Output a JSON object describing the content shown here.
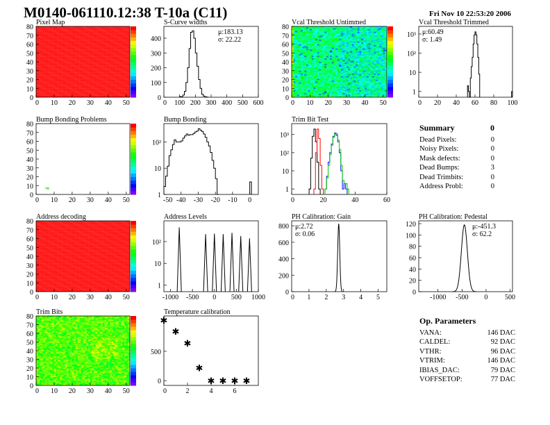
{
  "header": {
    "title": "M0140-061110.12:38 T-10a (C11)",
    "date": "Fri Nov 10 22:53:20 2006"
  },
  "colors": {
    "histogram": "#000000",
    "trim_black": "#000000",
    "trim_red": "#ff0000",
    "trim_blue": "#0000ff",
    "trim_green": "#00cc00"
  },
  "chart_data": [
    {
      "id": "pixel_map",
      "type": "heatmap",
      "title": "Pixel Map",
      "xticks": [
        0,
        10,
        20,
        30,
        40,
        50
      ],
      "yticks": [
        0,
        10,
        20,
        30,
        40,
        50,
        60,
        70,
        80
      ],
      "xlim": [
        0,
        52
      ],
      "ylim": [
        0,
        80
      ],
      "fill": "uniform-max",
      "palette": "rainbow"
    },
    {
      "id": "scurve",
      "type": "bar",
      "title": "S-Curve widths",
      "xlim": [
        0,
        600
      ],
      "ylim": [
        0,
        480
      ],
      "xticks": [
        0,
        100,
        200,
        300,
        400,
        500,
        600
      ],
      "yticks": [
        0,
        100,
        200,
        300,
        400
      ],
      "stats": [
        "μ:183.13",
        "σ: 22.22"
      ],
      "bins": {
        "width": 10,
        "x": [
          100,
          110,
          120,
          130,
          140,
          150,
          160,
          170,
          180,
          190,
          200,
          210,
          220,
          230,
          240,
          250,
          260,
          270
        ],
        "values": [
          5,
          3,
          15,
          40,
          100,
          200,
          330,
          440,
          450,
          400,
          300,
          210,
          120,
          60,
          20,
          8,
          3,
          1
        ]
      }
    },
    {
      "id": "vcal_untrimmed",
      "type": "heatmap",
      "title": "Vcal Threshold Untimmed",
      "xticks": [
        0,
        10,
        20,
        30,
        40,
        50
      ],
      "yticks": [
        0,
        10,
        20,
        30,
        40,
        50,
        60,
        70,
        80
      ],
      "xlim": [
        0,
        52
      ],
      "ylim": [
        0,
        80
      ],
      "fill": "noisy-mid",
      "palette": "rainbow"
    },
    {
      "id": "vcal_trimmed",
      "type": "bar",
      "title": "Vcal Threshold Trimmed",
      "log_y": true,
      "xlim": [
        0,
        100
      ],
      "ylim": [
        0.5,
        2500
      ],
      "xticks": [
        0,
        20,
        40,
        60,
        80,
        100
      ],
      "yticks": [
        1,
        10,
        100,
        1000
      ],
      "stats": [
        "μ:60.49",
        "σ: 1.49"
      ],
      "bins": {
        "width": 1,
        "x": [
          52,
          53,
          54,
          55,
          56,
          57,
          58,
          59,
          60,
          61,
          62,
          63,
          64,
          99
        ],
        "values": [
          2,
          1,
          0,
          5,
          20,
          60,
          300,
          900,
          1300,
          900,
          300,
          60,
          8,
          1
        ]
      }
    },
    {
      "id": "bump_problems",
      "type": "heatmap",
      "title": "Bump Bonding Problems",
      "xticks": [
        0,
        10,
        20,
        30,
        40,
        50
      ],
      "yticks": [
        0,
        10,
        20,
        30,
        40,
        50,
        60,
        70,
        80
      ],
      "xlim": [
        0,
        52
      ],
      "ylim": [
        0,
        80
      ],
      "fill": "empty",
      "points": [
        [
          5,
          7
        ],
        [
          6,
          7
        ],
        [
          6,
          6
        ]
      ],
      "palette": "rainbow"
    },
    {
      "id": "bump_bonding",
      "type": "bar",
      "title": "Bump Bonding",
      "log_y": true,
      "xlim": [
        -50,
        5
      ],
      "ylim": [
        1,
        500
      ],
      "xticks": [
        -50,
        -40,
        -30,
        -20,
        -10,
        0
      ],
      "yticks": [
        1,
        10,
        100
      ],
      "bins": {
        "width": 1,
        "x": [
          -50,
          -49,
          -48,
          -47,
          -46,
          -45,
          -44,
          -43,
          -42,
          -41,
          -40,
          -39,
          -38,
          -37,
          -36,
          -35,
          -34,
          -33,
          -32,
          -31,
          -30,
          -29,
          -28,
          -27,
          -26,
          -25,
          -24,
          -23,
          -22,
          -21,
          -20,
          -19,
          0
        ],
        "values": [
          2,
          5,
          12,
          30,
          50,
          80,
          120,
          100,
          100,
          100,
          110,
          140,
          170,
          200,
          180,
          190,
          190,
          210,
          240,
          260,
          320,
          280,
          250,
          200,
          150,
          100,
          70,
          40,
          20,
          10,
          4,
          1,
          3
        ]
      }
    },
    {
      "id": "trim_bit_test",
      "type": "bar",
      "title": "Trim Bit Test",
      "log_y": true,
      "xlim": [
        0,
        60
      ],
      "ylim": [
        0.5,
        4000
      ],
      "xticks": [
        0,
        20,
        40,
        60
      ],
      "yticks": [
        1,
        10,
        100,
        1000
      ],
      "series": [
        {
          "color": "#000000",
          "x": [
            11,
            12,
            13,
            14,
            15,
            16,
            17
          ],
          "values": [
            1,
            50,
            800,
            2000,
            400,
            30,
            1
          ]
        },
        {
          "color": "#ff0000",
          "x": [
            14,
            15,
            16,
            17,
            18,
            19
          ],
          "values": [
            1,
            100,
            2000,
            600,
            20,
            1
          ]
        },
        {
          "color": "#0000ff",
          "x": [
            21,
            22,
            23,
            24,
            25,
            26,
            27,
            28,
            29,
            30,
            31,
            32,
            33,
            34
          ],
          "values": [
            1,
            5,
            30,
            100,
            300,
            800,
            1200,
            900,
            400,
            100,
            10,
            1,
            2,
            1
          ]
        },
        {
          "color": "#00cc00",
          "x": [
            21,
            22,
            23,
            24,
            25,
            26,
            27,
            28,
            29,
            30,
            31,
            32,
            33,
            34,
            35
          ],
          "values": [
            1,
            4,
            20,
            80,
            250,
            700,
            1100,
            1100,
            500,
            150,
            20,
            3,
            2,
            2,
            1
          ]
        }
      ]
    },
    {
      "id": "address_decoding",
      "type": "heatmap",
      "title": "Address decoding",
      "xticks": [
        0,
        10,
        20,
        30,
        40,
        50
      ],
      "yticks": [
        0,
        10,
        20,
        30,
        40,
        50,
        60,
        70,
        80
      ],
      "xlim": [
        0,
        52
      ],
      "ylim": [
        0,
        80
      ],
      "fill": "uniform-max",
      "palette": "rainbow"
    },
    {
      "id": "address_levels",
      "type": "bar",
      "title": "Address Levels",
      "log_y": true,
      "xlim": [
        -1150,
        1000
      ],
      "ylim": [
        0.5,
        900
      ],
      "xticks": [
        -1000,
        -500,
        0,
        500,
        1000
      ],
      "yticks": [
        1,
        10,
        100
      ],
      "peaks": {
        "x": [
          -800,
          -200,
          0,
          200,
          400,
          600,
          800
        ],
        "values": [
          450,
          220,
          230,
          220,
          250,
          180,
          140
        ]
      }
    },
    {
      "id": "ph_gain",
      "type": "bar",
      "title": "PH Calibration: Gain",
      "xlim": [
        0,
        5.5
      ],
      "ylim": [
        0,
        860
      ],
      "xticks": [
        0,
        1,
        2,
        3,
        4,
        5
      ],
      "yticks": [
        0,
        200,
        400,
        600,
        800
      ],
      "stats": [
        "μ:2.72",
        "σ: 0.06"
      ],
      "gaussian": {
        "mean": 2.72,
        "sigma": 0.06,
        "peak": 820
      }
    },
    {
      "id": "ph_pedestal",
      "type": "bar",
      "title": "PH Calibration: Pedestal",
      "xlim": [
        -1400,
        550
      ],
      "ylim": [
        0,
        125
      ],
      "xticks": [
        -1000,
        -500,
        0,
        500
      ],
      "yticks": [
        0,
        20,
        40,
        60,
        80,
        100,
        120
      ],
      "stats": [
        "μ:-451.3",
        "σ: 62.2"
      ],
      "gaussian": {
        "mean": -451.3,
        "sigma": 62.2,
        "peak": 118
      }
    },
    {
      "id": "trim_bits",
      "type": "heatmap",
      "title": "Trim Bits",
      "xticks": [
        0,
        10,
        20,
        30,
        40,
        50
      ],
      "yticks": [
        0,
        10,
        20,
        30,
        40,
        50,
        60,
        70,
        80
      ],
      "xlim": [
        0,
        52
      ],
      "ylim": [
        0,
        80
      ],
      "fill": "noisy-high",
      "palette": "rainbow"
    },
    {
      "id": "temperature",
      "type": "scatter",
      "title": "Temperature calibration",
      "xlim": [
        0,
        8
      ],
      "ylim": [
        -80,
        1100
      ],
      "xticks": [
        0,
        2,
        4,
        6
      ],
      "yticks": [
        0,
        500
      ],
      "x": [
        0,
        1,
        2,
        3,
        4,
        5,
        6,
        7
      ],
      "y": [
        1030,
        840,
        640,
        220,
        0,
        0,
        0,
        0
      ]
    }
  ],
  "summary": {
    "title": "Summary",
    "total": "0",
    "rows": [
      {
        "label": "Dead Pixels:",
        "value": "0"
      },
      {
        "label": "Noisy Pixels:",
        "value": "0"
      },
      {
        "label": "Mask defects:",
        "value": "0"
      },
      {
        "label": "Dead Bumps:",
        "value": "3"
      },
      {
        "label": "Dead Trimbits:",
        "value": "0"
      },
      {
        "label": "Address Probl:",
        "value": "0"
      }
    ]
  },
  "op_parameters": {
    "title": "Op. Parameters",
    "rows": [
      {
        "label": "VANA:",
        "value": "146 DAC"
      },
      {
        "label": "CALDEL:",
        "value": "92 DAC"
      },
      {
        "label": "VTHR:",
        "value": "96 DAC"
      },
      {
        "label": "VTRIM:",
        "value": "146 DAC"
      },
      {
        "label": "IBIAS_DAC:",
        "value": "79 DAC"
      },
      {
        "label": "VOFFSETOP:",
        "value": "77 DAC"
      }
    ]
  }
}
